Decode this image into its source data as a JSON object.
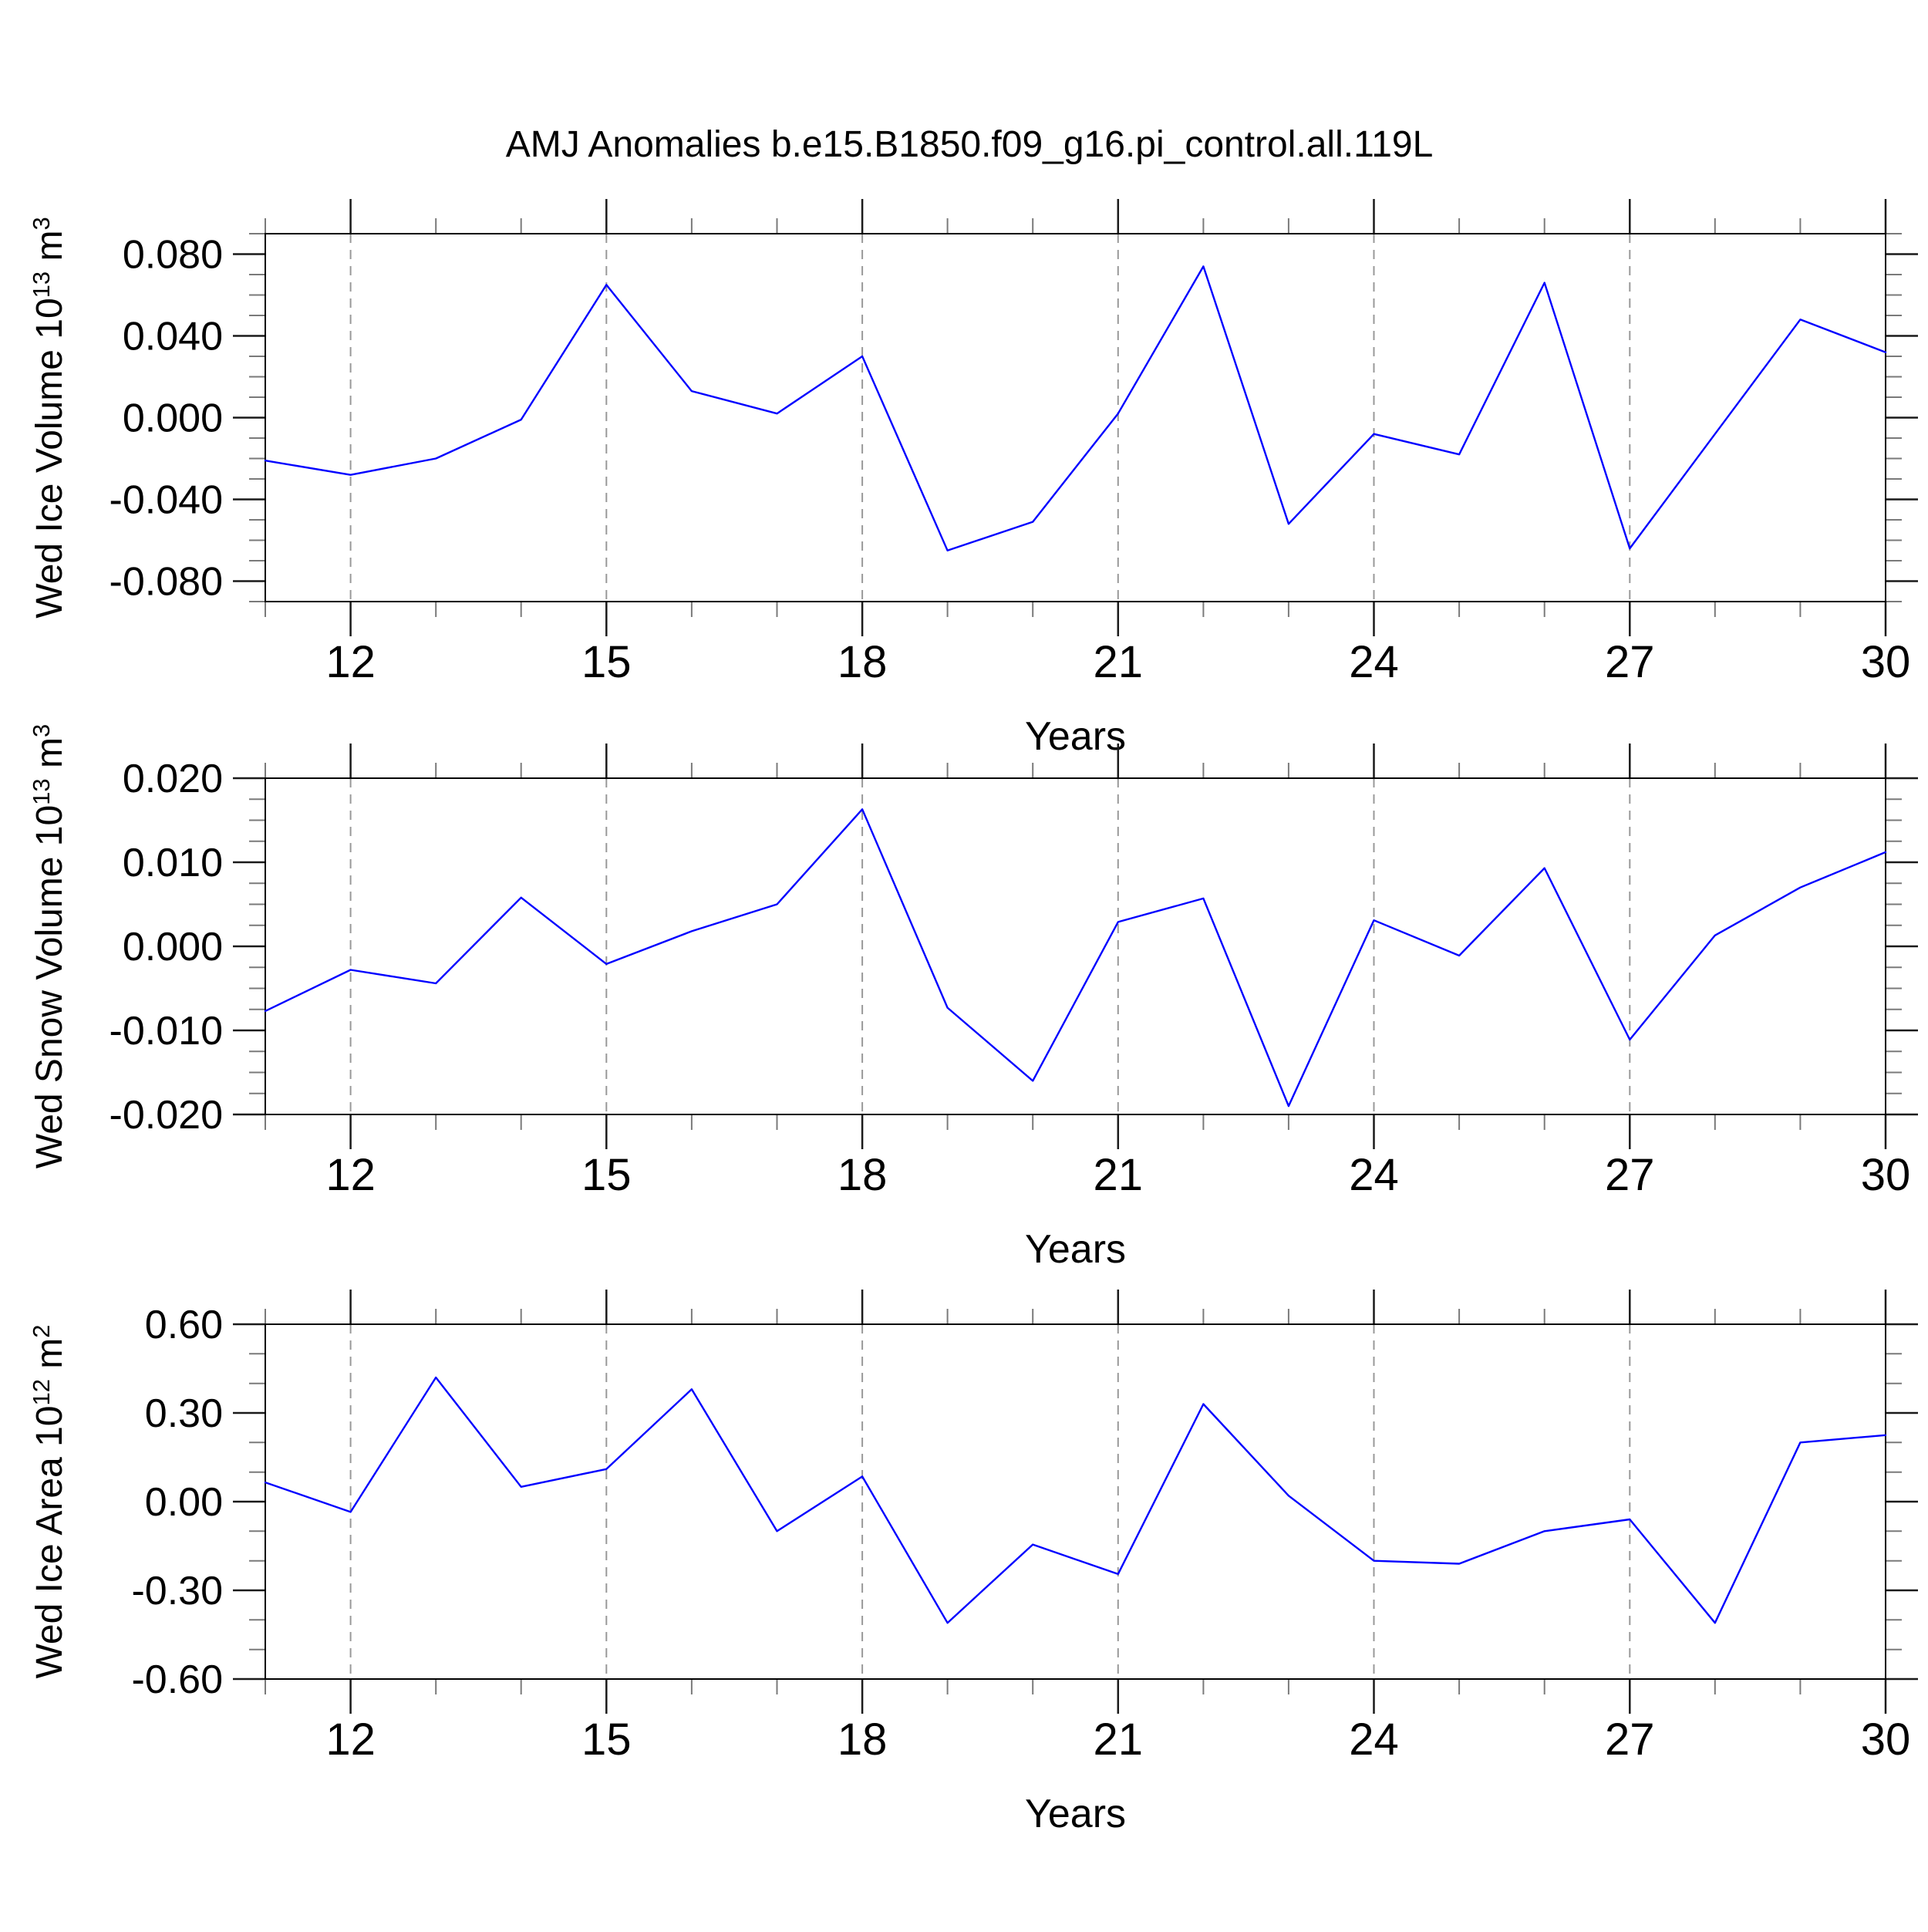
{
  "title": "AMJ Anomalies b.e15.B1850.f09_g16.pi_control.all.119L",
  "styles": {
    "background": "#ffffff",
    "line_color": "#0000ff",
    "frame_color": "#000000",
    "major_tick_color": "#1a1a1a",
    "minor_tick_color": "#7a7a7a",
    "grid_color": "#999999",
    "text_color": "#000000"
  },
  "chart_data": [
    {
      "id": "wed-ice-volume",
      "type": "line",
      "ylabel_plain": "Wed Ice Volume 10^13 m^3",
      "ylabel_parts": [
        {
          "text": "Wed Ice Volume 10",
          "sup": false
        },
        {
          "text": "13",
          "sup": true
        },
        {
          "text": " m",
          "sup": false
        },
        {
          "text": "3",
          "sup": true
        }
      ],
      "xlabel": "Years",
      "x": [
        11,
        12,
        13,
        14,
        15,
        16,
        17,
        18,
        19,
        20,
        21,
        22,
        23,
        24,
        25,
        26,
        27,
        28,
        29,
        30
      ],
      "values": [
        -0.021,
        -0.028,
        -0.02,
        -0.001,
        0.065,
        0.013,
        0.002,
        0.03,
        -0.065,
        -0.051,
        0.002,
        0.074,
        -0.052,
        -0.008,
        -0.018,
        0.066,
        -0.064,
        -0.008,
        0.048,
        0.032
      ],
      "xlim": [
        11,
        30
      ],
      "ylim": [
        -0.09,
        0.09
      ],
      "xticks": {
        "values": [
          12,
          15,
          18,
          21,
          24,
          27,
          30
        ],
        "labels": [
          "12",
          "15",
          "18",
          "21",
          "24",
          "27",
          "30"
        ],
        "minor_step": 1
      },
      "yticks": {
        "values": [
          0.08,
          0.04,
          0.0,
          -0.04,
          -0.08
        ],
        "labels": [
          "0.080",
          "0.040",
          "0.000",
          "-0.040",
          "-0.080"
        ],
        "minor_step": 0.01
      },
      "grid_x": [
        12,
        15,
        18,
        21,
        24,
        27
      ],
      "grid_on": true,
      "line_color": "#0000ff"
    },
    {
      "id": "wed-snow-volume",
      "type": "line",
      "ylabel_plain": "Wed Snow Volume 10^13 m^3",
      "ylabel_parts": [
        {
          "text": "Wed Snow Volume 10",
          "sup": false
        },
        {
          "text": "13",
          "sup": true
        },
        {
          "text": " m",
          "sup": false
        },
        {
          "text": "3",
          "sup": true
        }
      ],
      "xlabel": "Years",
      "x": [
        11,
        12,
        13,
        14,
        15,
        16,
        17,
        18,
        19,
        20,
        21,
        22,
        23,
        24,
        25,
        26,
        27,
        28,
        29,
        30
      ],
      "values": [
        -0.0077,
        -0.0028,
        -0.0044,
        0.0058,
        -0.0021,
        0.0018,
        0.005,
        0.0163,
        -0.0073,
        -0.016,
        0.0029,
        0.0057,
        -0.019,
        0.0031,
        -0.0011,
        0.0093,
        -0.0111,
        0.0013,
        0.007,
        0.0112
      ],
      "xlim": [
        11,
        30
      ],
      "ylim": [
        -0.02,
        0.02
      ],
      "xticks": {
        "values": [
          12,
          15,
          18,
          21,
          24,
          27,
          30
        ],
        "labels": [
          "12",
          "15",
          "18",
          "21",
          "24",
          "27",
          "30"
        ],
        "minor_step": 1
      },
      "yticks": {
        "values": [
          0.02,
          0.01,
          0.0,
          -0.01,
          -0.02
        ],
        "labels": [
          "0.020",
          "0.010",
          "0.000",
          "-0.010",
          "-0.020"
        ],
        "minor_step": 0.0025
      },
      "grid_x": [
        12,
        15,
        18,
        21,
        24,
        27
      ],
      "grid_on": true,
      "line_color": "#0000ff"
    },
    {
      "id": "wed-ice-area",
      "type": "line",
      "ylabel_plain": "Wed Ice Area 10^12 m^2",
      "ylabel_parts": [
        {
          "text": "Wed Ice Area 10",
          "sup": false
        },
        {
          "text": "12",
          "sup": true
        },
        {
          "text": " m",
          "sup": false
        },
        {
          "text": "2",
          "sup": true
        }
      ],
      "xlabel": "Years",
      "x": [
        11,
        12,
        13,
        14,
        15,
        16,
        17,
        18,
        19,
        20,
        21,
        22,
        23,
        24,
        25,
        26,
        27,
        28,
        29,
        30
      ],
      "values": [
        0.065,
        -0.035,
        0.42,
        0.05,
        0.11,
        0.38,
        -0.1,
        0.085,
        -0.41,
        -0.145,
        -0.245,
        0.33,
        0.02,
        -0.2,
        -0.21,
        -0.1,
        -0.06,
        -0.41,
        0.2,
        0.225
      ],
      "xlim": [
        11,
        30
      ],
      "ylim": [
        -0.6,
        0.6
      ],
      "xticks": {
        "values": [
          12,
          15,
          18,
          21,
          24,
          27,
          30
        ],
        "labels": [
          "12",
          "15",
          "18",
          "21",
          "24",
          "27",
          "30"
        ],
        "minor_step": 1
      },
      "yticks": {
        "values": [
          0.6,
          0.3,
          0.0,
          -0.3,
          -0.6
        ],
        "labels": [
          "0.60",
          "0.30",
          "0.00",
          "-0.30",
          "-0.60"
        ],
        "minor_step": 0.1
      },
      "grid_x": [
        12,
        15,
        18,
        21,
        24,
        27
      ],
      "grid_on": true,
      "line_color": "#0000ff"
    }
  ]
}
